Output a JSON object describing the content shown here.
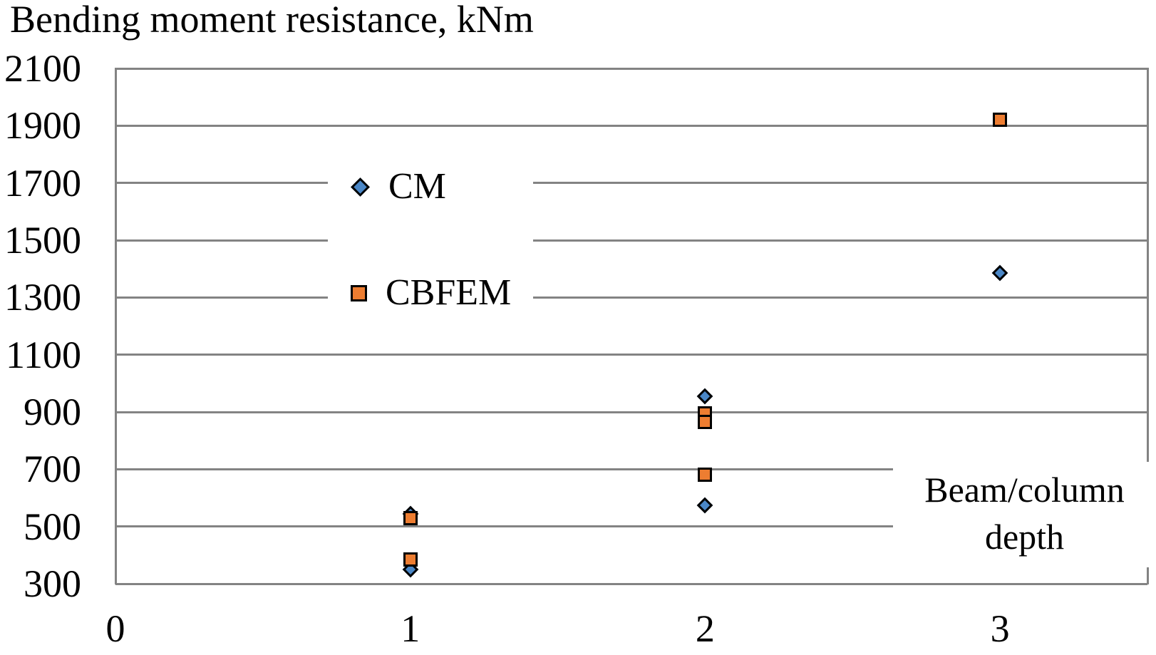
{
  "chart_data": {
    "type": "scatter",
    "title": "Bending moment resistance, kNm",
    "ylabel": "Bending moment resistance, kNm",
    "xlabel": "Beam/column depth",
    "xlabel_lines": [
      "Beam/column",
      "depth"
    ],
    "xlim": [
      0,
      3.5
    ],
    "ylim": [
      300,
      2100
    ],
    "yticks": [
      300,
      500,
      700,
      900,
      1100,
      1300,
      1500,
      1700,
      1900,
      2100
    ],
    "xticks": [
      0,
      1,
      2,
      3
    ],
    "grid": true,
    "gridline_color": "#838383",
    "legend_position": "inside upper-left",
    "series": [
      {
        "name": "CM",
        "marker": "diamond",
        "color": "#4A87C7",
        "points": [
          {
            "x": 1,
            "y": 545
          },
          {
            "x": 1,
            "y": 350
          },
          {
            "x": 2,
            "y": 955
          },
          {
            "x": 2,
            "y": 575
          },
          {
            "x": 3,
            "y": 1385
          }
        ]
      },
      {
        "name": "CBFEM",
        "marker": "square",
        "color": "#ED7D31",
        "points": [
          {
            "x": 1,
            "y": 530
          },
          {
            "x": 1,
            "y": 385
          },
          {
            "x": 2,
            "y": 895
          },
          {
            "x": 2,
            "y": 865
          },
          {
            "x": 2,
            "y": 680
          },
          {
            "x": 3,
            "y": 1920
          }
        ]
      }
    ]
  }
}
